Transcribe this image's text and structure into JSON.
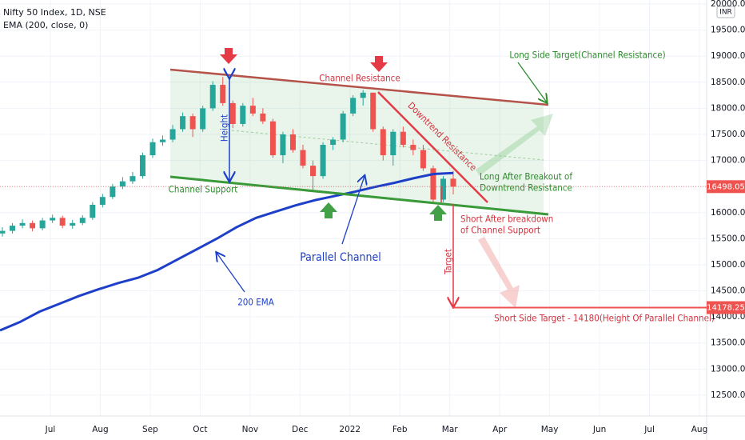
{
  "chart_data": {
    "type": "candlestick",
    "title": "Nifty 50 Index, 1D, NSE",
    "currency": "INR",
    "up_color": "#26a69a",
    "down_color": "#ef5350",
    "open": [
      15600,
      15650,
      15750,
      15800,
      15700,
      15850,
      15900,
      15750,
      15800,
      15900,
      16150,
      16300,
      16500,
      16600,
      16700,
      17100,
      17350,
      17400,
      17600,
      17850,
      17600,
      18000,
      18450,
      18100,
      17700,
      18050,
      17900,
      17750,
      17100,
      17500,
      17200,
      16900,
      16700,
      17300,
      17400,
      17900,
      18200,
      18300,
      17600,
      17100,
      17550,
      17300,
      17200,
      16850,
      16250,
      16650
    ],
    "high": [
      15720,
      15800,
      15870,
      15850,
      15900,
      15960,
      15940,
      15860,
      15950,
      16200,
      16360,
      16550,
      16680,
      16780,
      17150,
      17420,
      17480,
      17680,
      17920,
      17900,
      18050,
      18520,
      18600,
      18150,
      18100,
      18200,
      18000,
      17800,
      17550,
      17600,
      17300,
      17000,
      17350,
      17450,
      17950,
      18250,
      18350,
      18300,
      17650,
      17600,
      17650,
      17400,
      17300,
      16900,
      16700,
      16800
    ],
    "low": [
      15540,
      15600,
      15700,
      15640,
      15660,
      15800,
      15700,
      15690,
      15760,
      15860,
      16100,
      16260,
      16450,
      16550,
      16650,
      17050,
      17280,
      17350,
      17550,
      17450,
      17550,
      17950,
      18050,
      17620,
      17650,
      17850,
      17700,
      17050,
      16950,
      17150,
      16850,
      16400,
      16650,
      17200,
      17350,
      17850,
      18050,
      17550,
      17000,
      16900,
      17250,
      17100,
      16800,
      16200,
      16200,
      16350
    ],
    "close": [
      15650,
      15750,
      15800,
      15700,
      15850,
      15900,
      15750,
      15800,
      15900,
      16150,
      16300,
      16500,
      16600,
      16700,
      17100,
      17350,
      17400,
      17600,
      17850,
      17600,
      18000,
      18450,
      18100,
      17700,
      18050,
      17900,
      17750,
      17100,
      17500,
      17200,
      16900,
      16700,
      17300,
      17400,
      17900,
      18200,
      18300,
      17600,
      17100,
      17550,
      17300,
      17200,
      16850,
      16250,
      16650,
      16498.05
    ],
    "ema": {
      "name": "EMA (200, close, 0)",
      "color": "#1e40c8",
      "values": [
        13742,
        13900,
        14100,
        14250,
        14400,
        14530,
        14650,
        14750,
        14900,
        15100,
        15300,
        15500,
        15720,
        15900,
        16020,
        16140,
        16240,
        16320,
        16400,
        16490,
        16570,
        16660,
        16740,
        16760
      ]
    },
    "categories": [
      "Jul",
      "Aug",
      "Sep",
      "Oct",
      "Nov",
      "Dec",
      "2022",
      "Feb",
      "Mar",
      "Apr",
      "May",
      "Jun",
      "Jul",
      "Aug"
    ],
    "ylim": [
      12100,
      20077
    ],
    "yticks": [
      {
        "value": 12500,
        "label": "12500.00"
      },
      {
        "value": 13000,
        "label": "13000.00"
      },
      {
        "value": 13500,
        "label": "13500.00"
      },
      {
        "value": 14000,
        "label": "14000.00"
      },
      {
        "value": 14500,
        "label": "14500.00"
      },
      {
        "value": 15000,
        "label": "15000.00"
      },
      {
        "value": 15500,
        "label": "15500.00"
      },
      {
        "value": 16000,
        "label": "16000.00"
      },
      {
        "value": 16500,
        "label": "16500.00"
      },
      {
        "value": 17000,
        "label": "17000.00"
      },
      {
        "value": 17500,
        "label": "17500.00"
      },
      {
        "value": 18000,
        "label": "18000.00"
      },
      {
        "value": 18500,
        "label": "18500.00"
      },
      {
        "value": 19000,
        "label": "19000.00"
      },
      {
        "value": 19500,
        "label": "19500.00"
      },
      {
        "value": 20000,
        "label": "20000.00"
      }
    ],
    "grid": true,
    "price_lines": [
      {
        "value": 16498.05,
        "color": "#ef5350"
      },
      {
        "value": 14178.25,
        "color": "#ef5350"
      }
    ],
    "annotations": {
      "channel_resistance": "Channel Resistance",
      "channel_support": "Channel Support",
      "height": "Height",
      "downtrend_resistance": "Downtrend Resistance",
      "long_target": "Long Side Target(Channel Resistance)",
      "long_breakout_1": "Long After Breakout of",
      "long_breakout_2": "Downtrend Resistance",
      "short_breakdown_1": "Short After breakdown",
      "short_breakdown_2": "of Channel Support",
      "target": "Target",
      "parallel_channel": "Parallel Channel",
      "ema_label": "200 EMA",
      "short_target": "Short Side Target - 14180(Height Of Parallel Channel)"
    }
  }
}
